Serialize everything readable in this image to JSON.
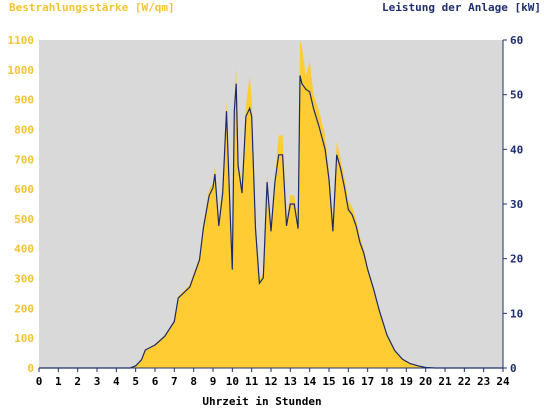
{
  "chart_data": {
    "type": "area",
    "ylabel_left": "Bestrahlungsstärke [W/qm]",
    "ylabel_right": "Leistung der Anlage [kW]",
    "xlabel": "Uhrzeit in Stunden",
    "xlim": [
      0,
      24
    ],
    "ylim_left": [
      0,
      1100
    ],
    "ylim_right": [
      0,
      60
    ],
    "x_ticks": [
      "0",
      "1",
      "2",
      "3",
      "4",
      "5",
      "6",
      "7",
      "8",
      "9",
      "10",
      "11",
      "12",
      "13",
      "14",
      "15",
      "16",
      "17",
      "18",
      "19",
      "20",
      "21",
      "22",
      "23",
      "24"
    ],
    "y_ticks_left": [
      "0",
      "100",
      "200",
      "300",
      "400",
      "500",
      "600",
      "700",
      "800",
      "900",
      "1000",
      "1100"
    ],
    "y_ticks_right": [
      "0",
      "10",
      "20",
      "30",
      "40",
      "50",
      "60"
    ],
    "grid": false,
    "colors": {
      "irradiance_fill": "#ffcc33",
      "power_line": "#1a2a6c",
      "plot_background": "#d9d9d9",
      "left_axis_text": "#f4c430",
      "right_axis_text": "#1f2f6e"
    },
    "series": [
      {
        "name": "Bestrahlungsstärke",
        "axis": "left",
        "style": "area",
        "x": [
          0,
          4.7,
          5.0,
          5.3,
          5.5,
          6.0,
          6.5,
          7.0,
          7.2,
          7.5,
          7.8,
          8.0,
          8.3,
          8.5,
          8.8,
          9.0,
          9.1,
          9.3,
          9.5,
          9.7,
          9.9,
          10.0,
          10.1,
          10.2,
          10.3,
          10.5,
          10.7,
          10.9,
          11.0,
          11.2,
          11.4,
          11.6,
          11.8,
          12.0,
          12.2,
          12.4,
          12.6,
          12.8,
          13.0,
          13.2,
          13.4,
          13.5,
          13.6,
          13.8,
          14.0,
          14.2,
          14.5,
          14.8,
          15.0,
          15.2,
          15.4,
          15.6,
          15.8,
          16.0,
          16.2,
          16.4,
          16.6,
          16.8,
          17.0,
          17.3,
          17.6,
          18.0,
          18.4,
          18.8,
          19.2,
          19.6,
          20.0,
          20.5,
          21.0,
          22.0,
          24.0
        ],
        "y": [
          0,
          0,
          10,
          30,
          60,
          80,
          110,
          160,
          240,
          260,
          280,
          320,
          370,
          480,
          600,
          620,
          680,
          500,
          620,
          900,
          520,
          350,
          900,
          1010,
          700,
          620,
          880,
          980,
          900,
          500,
          300,
          320,
          650,
          480,
          640,
          780,
          780,
          500,
          580,
          580,
          500,
          1100,
          1080,
          980,
          1030,
          920,
          860,
          780,
          660,
          500,
          760,
          700,
          640,
          560,
          540,
          500,
          440,
          400,
          340,
          270,
          200,
          110,
          60,
          30,
          15,
          8,
          3,
          0,
          0,
          0,
          0
        ]
      },
      {
        "name": "Leistung der Anlage",
        "axis": "right",
        "style": "line",
        "x": [
          0,
          4.7,
          5.0,
          5.3,
          5.5,
          6.0,
          6.5,
          7.0,
          7.2,
          7.5,
          7.8,
          8.0,
          8.3,
          8.5,
          8.8,
          9.0,
          9.1,
          9.3,
          9.5,
          9.7,
          9.9,
          10.0,
          10.1,
          10.2,
          10.3,
          10.5,
          10.7,
          10.9,
          11.0,
          11.2,
          11.4,
          11.6,
          11.8,
          12.0,
          12.2,
          12.4,
          12.6,
          12.8,
          13.0,
          13.2,
          13.4,
          13.5,
          13.6,
          13.8,
          14.0,
          14.2,
          14.5,
          14.8,
          15.0,
          15.2,
          15.4,
          15.6,
          15.8,
          16.0,
          16.2,
          16.4,
          16.6,
          16.8,
          17.0,
          17.3,
          17.6,
          18.0,
          18.4,
          18.8,
          19.2,
          19.6,
          20.0,
          20.5,
          21.0,
          22.0,
          24.0
        ],
        "y": [
          0,
          0,
          0.4,
          1.5,
          3.3,
          4.2,
          5.8,
          8.5,
          12.8,
          13.8,
          14.8,
          16.8,
          19.8,
          25.5,
          31.5,
          33.0,
          35.5,
          26.0,
          32.0,
          47.0,
          27.0,
          18.0,
          47.0,
          52.0,
          37.0,
          32.0,
          46.0,
          47.5,
          46.0,
          25.5,
          15.5,
          16.5,
          34.0,
          25.0,
          34.0,
          39.0,
          39.0,
          26.0,
          30.0,
          30.0,
          25.5,
          53.5,
          52.0,
          51.0,
          50.5,
          47.5,
          44.0,
          40.0,
          34.5,
          25.0,
          39.0,
          36.5,
          33.0,
          29.0,
          28.0,
          26.0,
          23.0,
          21.0,
          18.0,
          14.5,
          10.5,
          6.0,
          3.2,
          1.6,
          0.8,
          0.4,
          0.1,
          0,
          0,
          0,
          0
        ]
      }
    ]
  }
}
